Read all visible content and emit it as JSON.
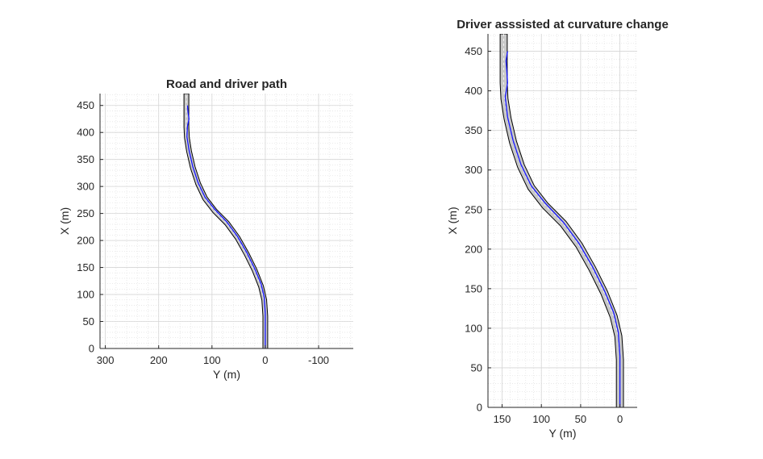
{
  "colors": {
    "road_fill": "#c8c8c8",
    "road_edge": "#000000",
    "path": "#1414ff",
    "grid_major": "#d6d6d6",
    "grid_minor": "#e4e4e4",
    "axis": "#262626"
  },
  "chart_data": [
    {
      "type": "line",
      "title": "Road and driver path",
      "xlabel": "Y (m)",
      "ylabel": "X (m)",
      "x_reversed": true,
      "xlim": [
        -165,
        310
      ],
      "ylim": [
        0,
        472
      ],
      "xticks": [
        300,
        200,
        100,
        0,
        -100
      ],
      "yticks": [
        0,
        50,
        100,
        150,
        200,
        250,
        300,
        350,
        400,
        450
      ],
      "grid": true,
      "minor_grid": true,
      "road": {
        "width_m": 9,
        "centerline": [
          [
            0,
            0
          ],
          [
            0,
            60
          ],
          [
            2,
            90
          ],
          [
            8,
            115
          ],
          [
            20,
            145
          ],
          [
            35,
            175
          ],
          [
            52,
            205
          ],
          [
            72,
            232
          ],
          [
            95,
            255
          ],
          [
            113,
            278
          ],
          [
            126,
            305
          ],
          [
            136,
            335
          ],
          [
            143,
            365
          ],
          [
            147,
            390
          ],
          [
            148,
            410
          ],
          [
            148,
            472
          ]
        ]
      },
      "series": [
        {
          "points": [
            [
              0,
              0
            ],
            [
              0,
              65
            ],
            [
              2,
              95
            ],
            [
              8,
              120
            ],
            [
              20,
              148
            ],
            [
              35,
              178
            ],
            [
              52,
              207
            ],
            [
              72,
              234
            ],
            [
              95,
              258
            ],
            [
              113,
              280
            ],
            [
              126,
              307
            ],
            [
              136,
              337
            ],
            [
              143,
              367
            ],
            [
              147,
              392
            ],
            [
              146,
              412
            ],
            [
              143,
              425
            ],
            [
              145,
              438
            ],
            [
              146,
              450
            ]
          ]
        }
      ]
    },
    {
      "type": "line",
      "title": "Driver asssisted at curvature change",
      "xlabel": "Y (m)",
      "ylabel": "X (m)",
      "x_reversed": true,
      "xlim": [
        -22,
        168
      ],
      "ylim": [
        0,
        472
      ],
      "xticks": [
        150,
        100,
        50,
        0
      ],
      "yticks": [
        0,
        50,
        100,
        150,
        200,
        250,
        300,
        350,
        400,
        450
      ],
      "grid": true,
      "minor_grid": true,
      "road": {
        "width_m": 9,
        "centerline": [
          [
            0,
            0
          ],
          [
            0,
            60
          ],
          [
            2,
            90
          ],
          [
            8,
            115
          ],
          [
            20,
            145
          ],
          [
            35,
            175
          ],
          [
            52,
            205
          ],
          [
            72,
            232
          ],
          [
            95,
            255
          ],
          [
            113,
            278
          ],
          [
            126,
            305
          ],
          [
            136,
            335
          ],
          [
            143,
            365
          ],
          [
            147,
            390
          ],
          [
            148,
            410
          ],
          [
            148,
            472
          ]
        ]
      },
      "series": [
        {
          "points": [
            [
              0,
              0
            ],
            [
              0,
              65
            ],
            [
              2,
              95
            ],
            [
              8,
              120
            ],
            [
              20,
              148
            ],
            [
              35,
              178
            ],
            [
              52,
              207
            ],
            [
              72,
              234
            ],
            [
              95,
              258
            ],
            [
              113,
              280
            ],
            [
              126,
              307
            ],
            [
              136,
              337
            ],
            [
              143,
              367
            ],
            [
              146,
              392
            ],
            [
              143,
              410
            ],
            [
              144,
              425
            ],
            [
              145,
              438
            ],
            [
              143,
              450
            ]
          ]
        }
      ]
    }
  ]
}
